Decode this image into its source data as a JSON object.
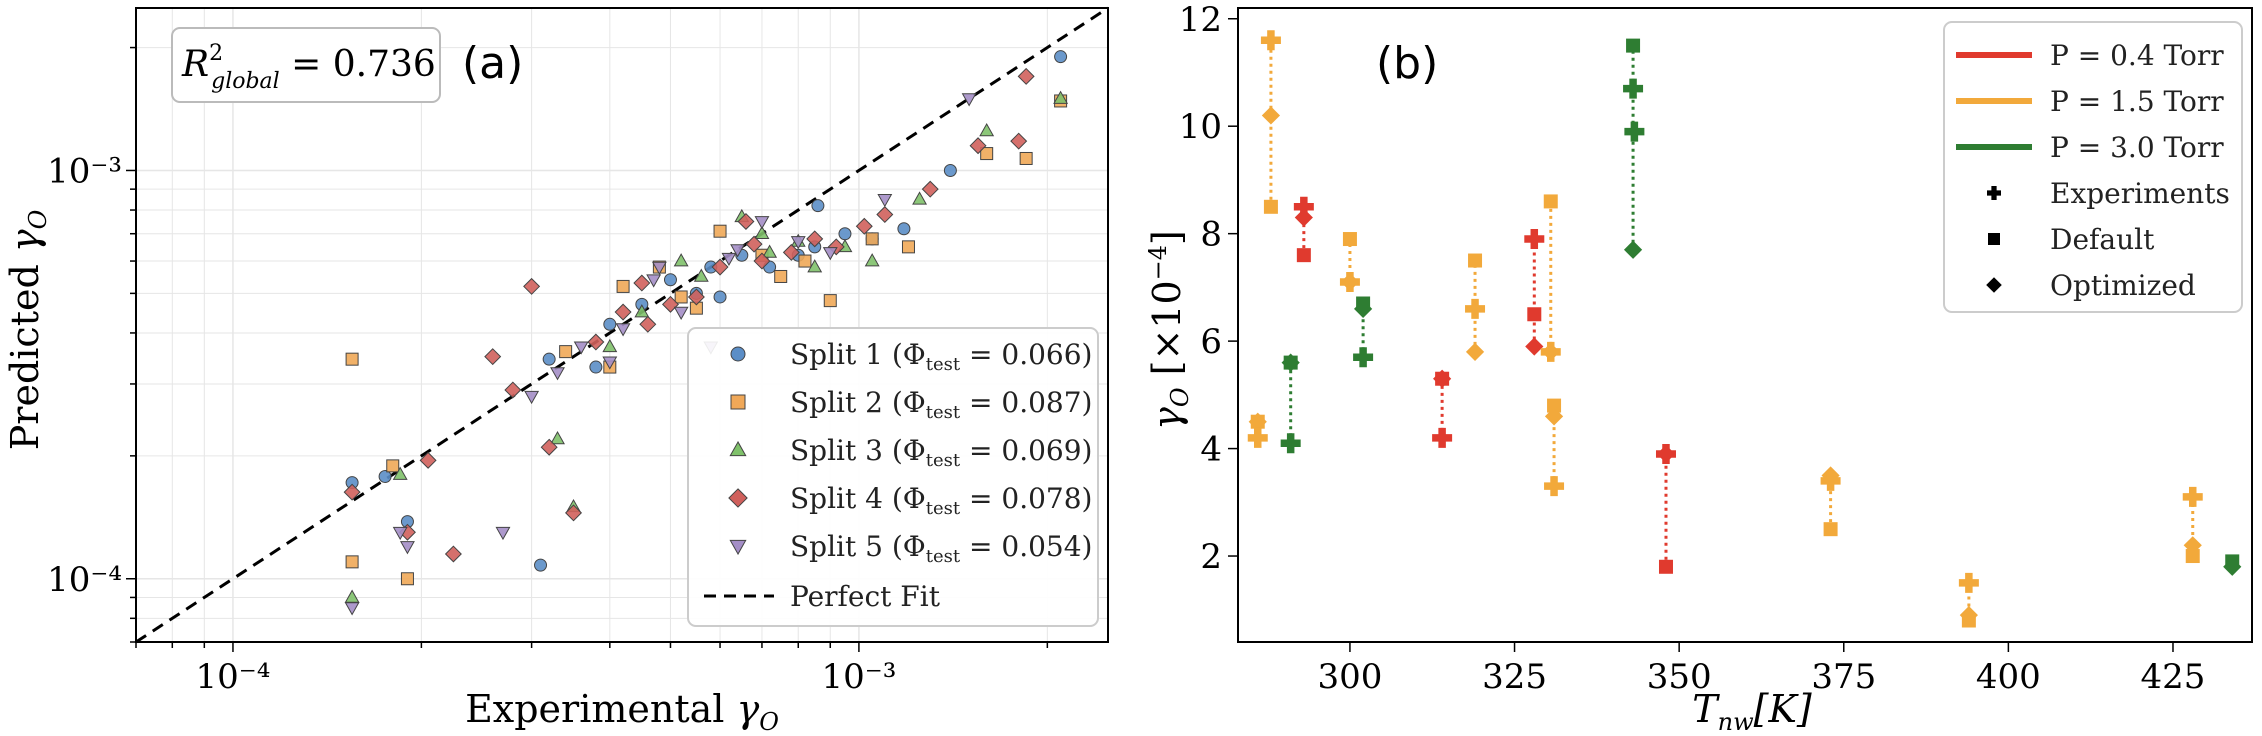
{
  "chart_data": [
    {
      "type": "scatter",
      "panel_label": "(a)",
      "xscale": "log",
      "yscale": "log",
      "xlim": [
        7e-05,
        0.0025
      ],
      "ylim": [
        7e-05,
        0.0025
      ],
      "xlabel": "Experimental γO",
      "ylabel": "Predicted γO",
      "xticks": [
        {
          "value": 0.0001,
          "label": "10⁻⁴"
        },
        {
          "value": 0.001,
          "label": "10⁻³"
        }
      ],
      "yticks": [
        {
          "value": 0.0001,
          "label": "10⁻⁴"
        },
        {
          "value": 0.001,
          "label": "10⁻³"
        }
      ],
      "grid": true,
      "annotation": "R²global = 0.736",
      "annotation_base": "R",
      "annotation_sup": "2",
      "annotation_sub": "global",
      "annotation_value": " = 0.736",
      "legend_position": "lower-right",
      "reference_line": {
        "label": "Perfect Fit",
        "style": "dashed",
        "color": "#000000"
      },
      "series": [
        {
          "name": "Split 1 (Φtest = 0.066)",
          "label": "Split 1 (Φ",
          "label_sub": "test",
          "label_end": " = 0.066)",
          "marker": "circle",
          "color": "#5b8ec7",
          "points": [
            [
              0.000155,
              0.000172
            ],
            [
              0.000175,
              0.000178
            ],
            [
              0.00019,
              0.000138
            ],
            [
              0.00031,
              0.000108
            ],
            [
              0.00032,
              0.000345
            ],
            [
              0.00038,
              0.00033
            ],
            [
              0.00045,
              0.00047
            ],
            [
              0.0005,
              0.00054
            ],
            [
              0.00058,
              0.00058
            ],
            [
              0.00065,
              0.00062
            ],
            [
              0.00072,
              0.00058
            ],
            [
              0.0008,
              0.00062
            ],
            [
              0.00086,
              0.00082
            ],
            [
              0.00095,
              0.0007
            ],
            [
              0.00105,
              0.00068
            ],
            [
              0.00118,
              0.00072
            ],
            [
              0.0014,
              0.001
            ],
            [
              0.0021,
              0.0019
            ],
            [
              0.0006,
              0.00049
            ],
            [
              0.00085,
              0.00065
            ],
            [
              0.0004,
              0.00042
            ],
            [
              0.00055,
              0.0005
            ]
          ]
        },
        {
          "name": "Split 2 (Φtest = 0.087)",
          "label": "Split 2 (Φ",
          "label_sub": "test",
          "label_end": " = 0.087)",
          "marker": "square",
          "color": "#f0a858",
          "points": [
            [
              0.000155,
              0.000345
            ],
            [
              0.000155,
              0.00011
            ],
            [
              0.00018,
              0.000189
            ],
            [
              0.00019,
              0.0001
            ],
            [
              0.00034,
              0.00036
            ],
            [
              0.0004,
              0.00033
            ],
            [
              0.00042,
              0.00052
            ],
            [
              0.00048,
              0.00058
            ],
            [
              0.00055,
              0.00046
            ],
            [
              0.0006,
              0.00071
            ],
            [
              0.0007,
              0.00062
            ],
            [
              0.00082,
              0.0006
            ],
            [
              0.0009,
              0.00048
            ],
            [
              0.00105,
              0.00068
            ],
            [
              0.0012,
              0.00065
            ],
            [
              0.0016,
              0.0011
            ],
            [
              0.00185,
              0.00107
            ],
            [
              0.0021,
              0.00148
            ],
            [
              0.00075,
              0.00055
            ],
            [
              0.00052,
              0.00049
            ]
          ]
        },
        {
          "name": "Split 3 (Φtest = 0.069)",
          "label": "Split 3 (Φ",
          "label_sub": "test",
          "label_end": " = 0.069)",
          "marker": "triangle",
          "color": "#7fc16a",
          "points": [
            [
              0.000155,
              9e-05
            ],
            [
              0.000185,
              0.00018
            ],
            [
              0.00033,
              0.00022
            ],
            [
              0.00035,
              0.00015
            ],
            [
              0.0004,
              0.00037
            ],
            [
              0.00045,
              0.00045
            ],
            [
              0.00052,
              0.0006
            ],
            [
              0.00056,
              0.00055
            ],
            [
              0.00065,
              0.00077
            ],
            [
              0.00072,
              0.00063
            ],
            [
              0.00085,
              0.00058
            ],
            [
              0.00095,
              0.00065
            ],
            [
              0.00105,
              0.0006
            ],
            [
              0.00125,
              0.00085
            ],
            [
              0.0016,
              0.00125
            ],
            [
              0.0021,
              0.0015
            ],
            [
              0.0007,
              0.0007
            ],
            [
              0.0008,
              0.00067
            ]
          ]
        },
        {
          "name": "Split 4 (Φtest = 0.078)",
          "label": "Split 4 (Φ",
          "label_sub": "test",
          "label_end": " = 0.078)",
          "marker": "diamond",
          "color": "#d0605c",
          "points": [
            [
              0.000155,
              0.000163
            ],
            [
              0.00019,
              0.00013
            ],
            [
              0.000205,
              0.000195
            ],
            [
              0.000225,
              0.000115
            ],
            [
              0.00026,
              0.00035
            ],
            [
              0.00028,
              0.00029
            ],
            [
              0.0003,
              0.00052
            ],
            [
              0.00032,
              0.00021
            ],
            [
              0.00035,
              0.000145
            ],
            [
              0.00038,
              0.00038
            ],
            [
              0.00042,
              0.00045
            ],
            [
              0.00046,
              0.00042
            ],
            [
              0.0005,
              0.00047
            ],
            [
              0.00055,
              0.00049
            ],
            [
              0.0006,
              0.00058
            ],
            [
              0.00066,
              0.00075
            ],
            [
              0.0007,
              0.0006
            ],
            [
              0.00078,
              0.00063
            ],
            [
              0.00085,
              0.00068
            ],
            [
              0.00092,
              0.00065
            ],
            [
              0.00102,
              0.00073
            ],
            [
              0.0011,
              0.00078
            ],
            [
              0.0013,
              0.0009
            ],
            [
              0.00155,
              0.00115
            ],
            [
              0.0018,
              0.00118
            ],
            [
              0.00185,
              0.0017
            ],
            [
              0.00068,
              0.00066
            ],
            [
              0.00045,
              0.00053
            ]
          ]
        },
        {
          "name": "Split 5 (Φtest = 0.054)",
          "label": "Split 5 (Φ",
          "label_sub": "test",
          "label_end": " = 0.054)",
          "marker": "triangle-down",
          "color": "#a48ec7",
          "points": [
            [
              0.000155,
              8.5e-05
            ],
            [
              0.000185,
              0.00013
            ],
            [
              0.00019,
              0.00012
            ],
            [
              0.00027,
              0.00013
            ],
            [
              0.0003,
              0.00028
            ],
            [
              0.00033,
              0.00032
            ],
            [
              0.00036,
              0.00037
            ],
            [
              0.0004,
              0.00034
            ],
            [
              0.00042,
              0.00041
            ],
            [
              0.00048,
              0.00058
            ],
            [
              0.00052,
              0.00045
            ],
            [
              0.00058,
              0.00037
            ],
            [
              0.00064,
              0.00064
            ],
            [
              0.0007,
              0.00075
            ],
            [
              0.0008,
              0.00067
            ],
            [
              0.0009,
              0.00063
            ],
            [
              0.0011,
              0.00085
            ],
            [
              0.0015,
              0.0015
            ],
            [
              0.00047,
              0.00054
            ],
            [
              0.00062,
              0.00061
            ]
          ]
        }
      ]
    },
    {
      "type": "scatter",
      "panel_label": "(b)",
      "xlabel": "Tnw[K]",
      "xlabel_base": "T",
      "xlabel_sub": "nw",
      "xlabel_end": "[K]",
      "ylabel": "γO [×10⁻⁴]",
      "xlim": [
        283,
        437
      ],
      "ylim": [
        0.4,
        12.2
      ],
      "xticks": [
        300,
        325,
        350,
        375,
        400,
        425
      ],
      "yticks": [
        2,
        4,
        6,
        8,
        10,
        12
      ],
      "grid": false,
      "legend_position": "top-right",
      "legend": [
        {
          "label": "P = 0.4 Torr",
          "type": "line",
          "color": "#e03a2e"
        },
        {
          "label": "P = 1.5 Torr",
          "type": "line",
          "color": "#f2a93b"
        },
        {
          "label": "P = 3.0 Torr",
          "type": "line",
          "color": "#2e7d32"
        },
        {
          "label": "Experiments",
          "type": "marker",
          "marker": "plus"
        },
        {
          "label": "Default",
          "type": "marker",
          "marker": "square"
        },
        {
          "label": "Optimized",
          "type": "marker",
          "marker": "diamond"
        }
      ],
      "series": [
        {
          "name": "P = 0.4 Torr",
          "color": "#e03a2e",
          "points": [
            {
              "T": 293,
              "experiment": 8.5,
              "default": 7.6,
              "optimized": 8.3
            },
            {
              "T": 314,
              "experiment": 4.2,
              "default": 5.3,
              "optimized": 5.3
            },
            {
              "T": 328,
              "experiment": 7.9,
              "default": 6.5,
              "optimized": 5.9
            },
            {
              "T": 348,
              "experiment": 3.9,
              "default": 1.8,
              "optimized": 3.9
            }
          ]
        },
        {
          "name": "P = 1.5 Torr",
          "color": "#f2a93b",
          "points": [
            {
              "T": 286,
              "experiment": 4.2,
              "default": 4.5,
              "optimized": 4.5
            },
            {
              "T": 288,
              "experiment": 11.6,
              "default": 8.5,
              "optimized": 10.2
            },
            {
              "T": 300,
              "experiment": 7.1,
              "default": 7.9,
              "optimized": 7.1
            },
            {
              "T": 319,
              "experiment": 6.6,
              "default": 7.5,
              "optimized": 5.8
            },
            {
              "T": 330.5,
              "experiment": 5.8,
              "default": 8.6,
              "optimized": 5.8
            },
            {
              "T": 331,
              "experiment": 3.3,
              "default": 4.8,
              "optimized": 4.6
            },
            {
              "T": 373,
              "experiment": 3.4,
              "default": 2.5,
              "optimized": 3.5
            },
            {
              "T": 394,
              "experiment": 1.5,
              "default": 0.8,
              "optimized": 0.9
            },
            {
              "T": 428,
              "experiment": 3.1,
              "default": 2.0,
              "optimized": 2.2
            }
          ]
        },
        {
          "name": "P = 3.0 Torr",
          "color": "#2e7d32",
          "points": [
            {
              "T": 291,
              "experiment": 4.1,
              "default": 5.6,
              "optimized": 5.6
            },
            {
              "T": 302,
              "experiment": 5.7,
              "default": 6.7,
              "optimized": 6.6
            },
            {
              "T": 343,
              "experiment": 10.7,
              "default": 11.5,
              "optimized": 7.7
            },
            {
              "T": 343.2,
              "experiment": 9.9,
              "default": null,
              "optimized": null
            },
            {
              "T": 434,
              "experiment": null,
              "default": 1.9,
              "optimized": 1.8
            }
          ]
        }
      ]
    }
  ]
}
